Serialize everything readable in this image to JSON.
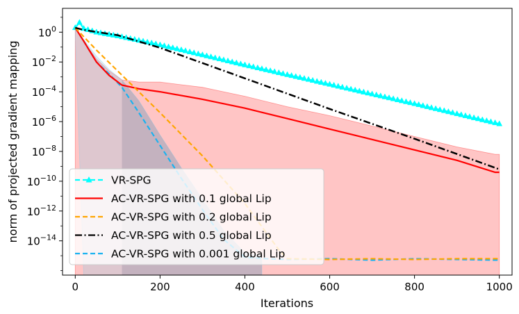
{
  "chart_data": {
    "type": "line",
    "title": "",
    "xlabel": "Iterations",
    "ylabel": "norm of projected gradient mapping",
    "yscale": "log",
    "xlim": [
      -30,
      1030
    ],
    "ylim_exp": [
      -16.3,
      1.6
    ],
    "x_ticks": [
      0,
      200,
      400,
      600,
      800,
      1000
    ],
    "x_tick_labels": [
      "0",
      "200",
      "400",
      "600",
      "800",
      "1000"
    ],
    "y_ticks_exp": [
      0,
      -2,
      -4,
      -6,
      -8,
      -10,
      -12,
      -14
    ],
    "y_tick_labels": [
      {
        "base": "10",
        "exp": "0"
      },
      {
        "base": "10",
        "exp": "−2"
      },
      {
        "base": "10",
        "exp": "−4"
      },
      {
        "base": "10",
        "exp": "−6"
      },
      {
        "base": "10",
        "exp": "−8"
      },
      {
        "base": "10",
        "exp": "−10"
      },
      {
        "base": "10",
        "exp": "−12"
      },
      {
        "base": "10",
        "exp": "−14"
      }
    ],
    "legend_position": "lower-left",
    "series": [
      {
        "name": "VR-SPG",
        "color": "#00ffff",
        "dash": "dashed",
        "marker": "triangle-up",
        "x": [
          0,
          10,
          20,
          50,
          100,
          200,
          400,
          600,
          800,
          1000
        ],
        "log10_y": [
          0.3,
          0.65,
          0.25,
          0.0,
          -0.25,
          -0.85,
          -2.2,
          -3.5,
          -4.8,
          -6.15
        ],
        "band_log10_low": [],
        "band_log10_high": [],
        "band_color": ""
      },
      {
        "name": "AC-VR-SPG with 0.1 global Lip",
        "color": "#ff0000",
        "dash": "solid",
        "marker": "",
        "x": [
          0,
          20,
          50,
          80,
          110,
          150,
          200,
          300,
          400,
          500,
          600,
          700,
          800,
          900,
          990,
          1000
        ],
        "log10_y": [
          0.3,
          -0.6,
          -2.0,
          -2.9,
          -3.55,
          -3.8,
          -4.0,
          -4.5,
          -5.1,
          -5.8,
          -6.5,
          -7.2,
          -7.9,
          -8.6,
          -9.4,
          -9.4
        ],
        "band_log10_low": [
          -16.3,
          -16.3,
          -16.3,
          -16.3,
          -16.3,
          -16.3,
          -16.3,
          -16.3,
          -16.3,
          -16.3,
          -16.3,
          -16.3,
          -16.3,
          -16.3,
          -16.3,
          -16.3
        ],
        "band_log10_high": [
          0.3,
          -0.6,
          -1.8,
          -2.6,
          -3.2,
          -3.35,
          -3.35,
          -3.7,
          -4.3,
          -5.0,
          -5.6,
          -6.3,
          -7.0,
          -7.7,
          -8.2,
          -8.2
        ],
        "band_color": "#ff3030"
      },
      {
        "name": "AC-VR-SPG with 0.2 global Lip",
        "color": "#ffa500",
        "dash": "dashed",
        "marker": "",
        "x": [
          0,
          50,
          100,
          200,
          300,
          400,
          480,
          500,
          600,
          700,
          800,
          900,
          1000
        ],
        "log10_y": [
          0.3,
          -1.2,
          -2.6,
          -5.4,
          -8.3,
          -11.5,
          -14.6,
          -15.2,
          -15.25,
          -15.2,
          -15.25,
          -15.2,
          -15.2
        ],
        "band_log10_low": [],
        "band_log10_high": [],
        "band_color": ""
      },
      {
        "name": "AC-VR-SPG with 0.5 global Lip",
        "color": "#000000",
        "dash": "dashdot",
        "marker": "",
        "x": [
          0,
          20,
          100,
          200,
          400,
          600,
          800,
          1000
        ],
        "log10_y": [
          0.3,
          0.15,
          -0.2,
          -1.05,
          -3.1,
          -5.15,
          -7.15,
          -9.2
        ],
        "band_log10_low": [],
        "band_log10_high": [],
        "band_color": ""
      },
      {
        "name": "AC-VR-SPG with 0.001 global Lip",
        "color": "#1ab2f0",
        "dash": "dashed",
        "marker": "",
        "x": [
          0,
          20,
          50,
          80,
          110,
          150,
          200,
          250,
          300,
          350,
          400,
          450,
          500,
          600,
          700,
          800,
          900,
          1000
        ],
        "log10_y": [
          0.3,
          -0.6,
          -2.0,
          -2.8,
          -3.7,
          -5.4,
          -7.6,
          -9.8,
          -11.9,
          -13.9,
          -15.1,
          -15.2,
          -15.25,
          -15.2,
          -15.3,
          -15.2,
          -15.25,
          -15.3
        ],
        "band_log10_low": [
          -0.2,
          -16.3,
          -16.3,
          -16.3,
          -16.3,
          -16.3,
          -16.3,
          -16.3,
          -16.3,
          -16.3,
          -16.3,
          -16.3
        ],
        "band_log10_high": [
          0.3,
          -0.5,
          -1.6,
          -2.5,
          -3.2,
          -4.6,
          -6.9,
          -9.1,
          -11.2,
          -13.3,
          -14.8,
          -15.0
        ],
        "band_x": [
          0,
          20,
          50,
          80,
          110,
          150,
          200,
          250,
          300,
          350,
          400,
          440
        ],
        "band_color": "#87ceeb"
      }
    ]
  }
}
